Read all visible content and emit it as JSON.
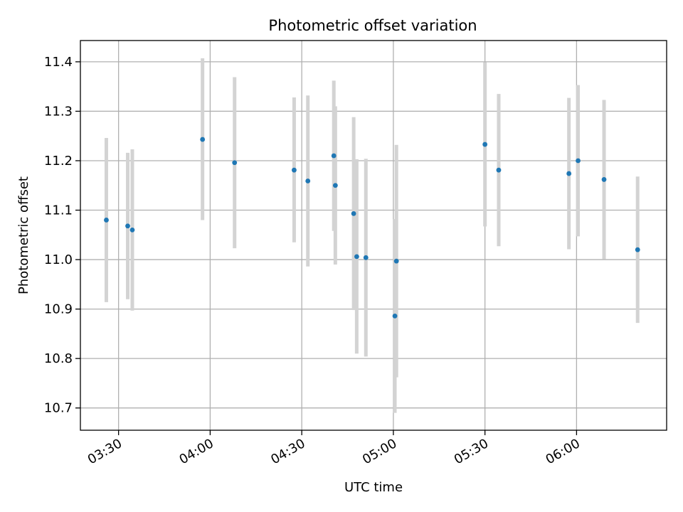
{
  "chart_data": {
    "type": "scatter",
    "title": "Photometric offset variation",
    "xlabel": "UTC time",
    "ylabel": "Photometric offset",
    "grid": true,
    "x_ticks": [
      "03:30",
      "04:00",
      "04:30",
      "05:00",
      "05:30",
      "06:00"
    ],
    "y_ticks": [
      "10.7",
      "10.8",
      "10.9",
      "11.0",
      "11.1",
      "11.2",
      "11.3",
      "11.4"
    ],
    "xlim": [
      "03:17:30",
      "06:29:30"
    ],
    "ylim": [
      10.655,
      11.443
    ],
    "colors": {
      "point": "#1f77b4",
      "errorbar": "#d3d3d3",
      "grid": "#b0b0b0"
    },
    "points": [
      {
        "x": "03:26:00",
        "y": 11.08,
        "ylow": 10.914,
        "yhigh": 11.246
      },
      {
        "x": "03:33:00",
        "y": 11.068,
        "ylow": 10.92,
        "yhigh": 11.216
      },
      {
        "x": "03:34:30",
        "y": 11.06,
        "ylow": 10.897,
        "yhigh": 11.223
      },
      {
        "x": "03:57:30",
        "y": 11.243,
        "ylow": 11.08,
        "yhigh": 11.407
      },
      {
        "x": "04:08:00",
        "y": 11.196,
        "ylow": 11.023,
        "yhigh": 11.369
      },
      {
        "x": "04:27:30",
        "y": 11.181,
        "ylow": 11.035,
        "yhigh": 11.328
      },
      {
        "x": "04:32:00",
        "y": 11.159,
        "ylow": 10.986,
        "yhigh": 11.332
      },
      {
        "x": "04:40:30",
        "y": 11.21,
        "ylow": 11.058,
        "yhigh": 11.362
      },
      {
        "x": "04:41:00",
        "y": 11.15,
        "ylow": 10.99,
        "yhigh": 11.31
      },
      {
        "x": "04:47:00",
        "y": 11.093,
        "ylow": 10.898,
        "yhigh": 11.288
      },
      {
        "x": "04:48:00",
        "y": 11.006,
        "ylow": 10.81,
        "yhigh": 11.203
      },
      {
        "x": "04:51:00",
        "y": 11.004,
        "ylow": 10.804,
        "yhigh": 11.204
      },
      {
        "x": "05:00:30",
        "y": 10.886,
        "ylow": 10.69,
        "yhigh": 11.082
      },
      {
        "x": "05:01:00",
        "y": 10.997,
        "ylow": 10.762,
        "yhigh": 11.232
      },
      {
        "x": "05:30:00",
        "y": 11.233,
        "ylow": 11.067,
        "yhigh": 11.399
      },
      {
        "x": "05:34:30",
        "y": 11.181,
        "ylow": 11.027,
        "yhigh": 11.335
      },
      {
        "x": "05:57:30",
        "y": 11.174,
        "ylow": 11.021,
        "yhigh": 11.327
      },
      {
        "x": "06:00:30",
        "y": 11.2,
        "ylow": 11.047,
        "yhigh": 11.353
      },
      {
        "x": "06:09:00",
        "y": 11.162,
        "ylow": 11.001,
        "yhigh": 11.323
      },
      {
        "x": "06:20:00",
        "y": 11.02,
        "ylow": 10.872,
        "yhigh": 11.168
      }
    ]
  }
}
